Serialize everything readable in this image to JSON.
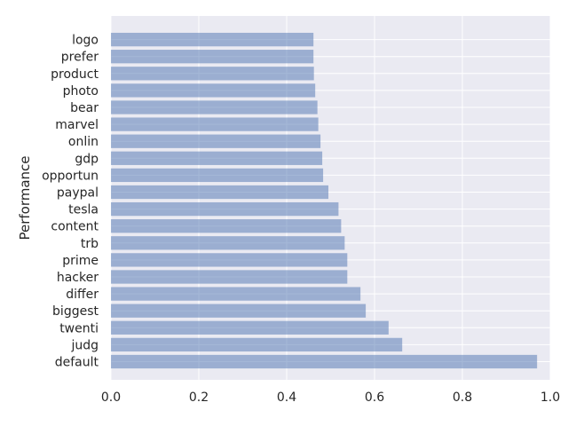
{
  "chart_data": {
    "type": "bar",
    "orientation": "horizontal",
    "title": "",
    "xlabel": "",
    "ylabel": "Performance",
    "xlim": [
      0,
      1.0
    ],
    "xticks": [
      "0.0",
      "0.2",
      "0.4",
      "0.6",
      "0.8",
      "1.0"
    ],
    "xtick_values": [
      0.0,
      0.2,
      0.4,
      0.6,
      0.8,
      1.0
    ],
    "categories": [
      "default",
      "judg",
      "twenti",
      "biggest",
      "differ",
      "hacker",
      "prime",
      "trb",
      "content",
      "tesla",
      "paypal",
      "opportun",
      "gdp",
      "onlin",
      "marvel",
      "bear",
      "photo",
      "product",
      "prefer",
      "logo"
    ],
    "values": [
      0.97,
      0.663,
      0.632,
      0.58,
      0.568,
      0.538,
      0.538,
      0.532,
      0.524,
      0.518,
      0.495,
      0.483,
      0.481,
      0.477,
      0.472,
      0.47,
      0.465,
      0.462,
      0.461,
      0.461
    ],
    "grid": true,
    "legend": "none",
    "colors": {
      "background": "#eaeaf2",
      "grid": "#ffffff",
      "bar": "#4c72b0",
      "bar_opacity": 0.5,
      "text": "#262626"
    }
  }
}
